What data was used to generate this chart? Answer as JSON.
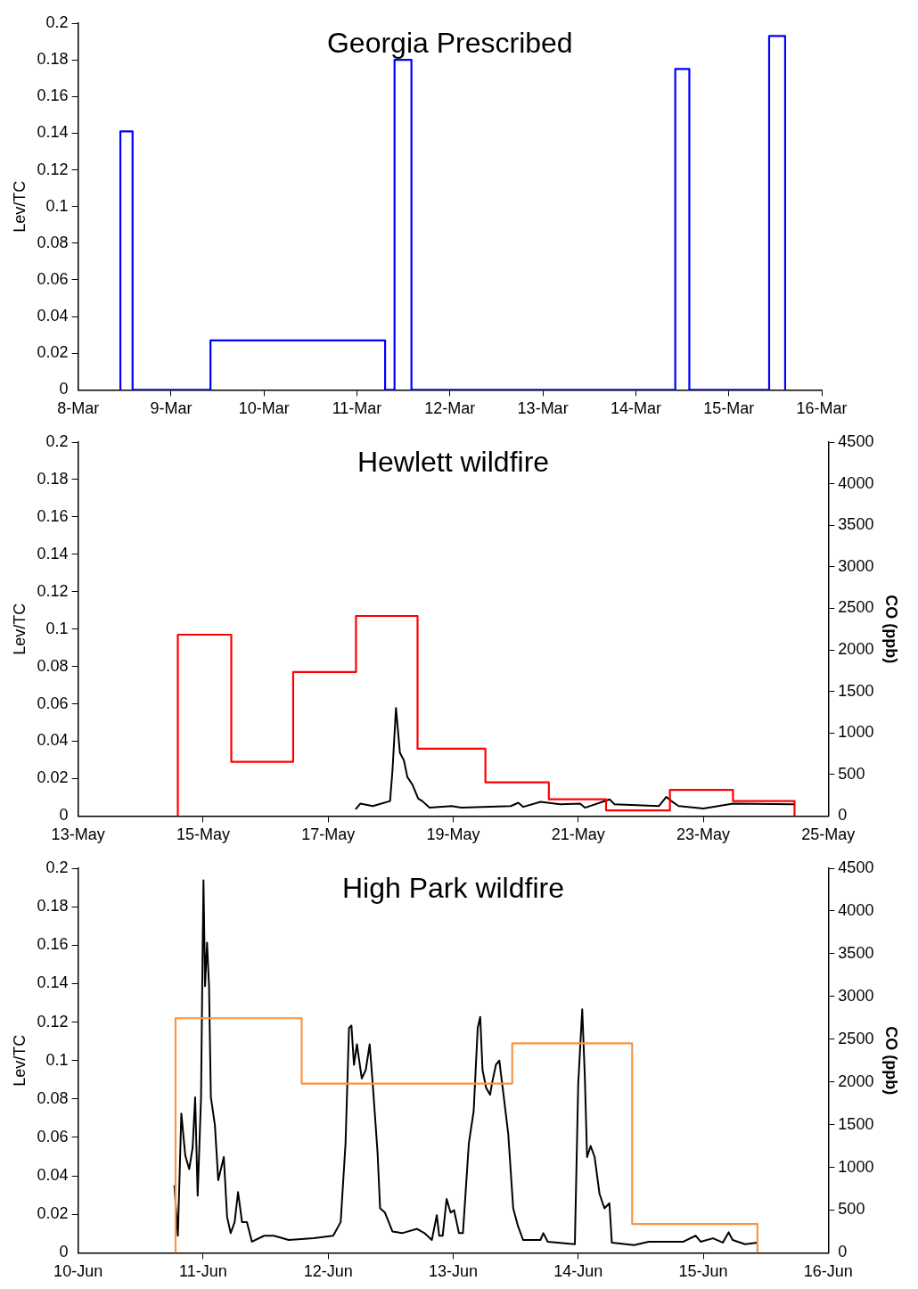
{
  "chart_data": [
    {
      "type": "step",
      "title": "Georgia Prescribed",
      "ylabel": "Lev/TC",
      "xlim": [
        "--03-08",
        "--03-16"
      ],
      "xticks": [
        {
          "value": "--03-08",
          "label": "8-Mar"
        },
        {
          "value": "--03-09",
          "label": "9-Mar"
        },
        {
          "value": "--03-10",
          "label": "10-Mar"
        },
        {
          "value": "--03-11",
          "label": "11-Mar"
        },
        {
          "value": "--03-12",
          "label": "12-Mar"
        },
        {
          "value": "--03-13",
          "label": "13-Mar"
        },
        {
          "value": "--03-14",
          "label": "14-Mar"
        },
        {
          "value": "--03-15",
          "label": "15-Mar"
        },
        {
          "value": "--03-16",
          "label": "16-Mar"
        }
      ],
      "ylim": [
        0,
        0.2
      ],
      "yticks": [
        0,
        0.02,
        0.04,
        0.06,
        0.08,
        0.1,
        0.12,
        0.14,
        0.16,
        0.18,
        0.2
      ],
      "marker": "none",
      "series": [
        {
          "color": "#0000ff",
          "x": [
            "--03-08T10:55",
            "--03-08T10:55",
            "--03-08T14:04",
            "--03-09T10:11",
            "--03-11T07:16",
            "--03-11T09:42",
            "--03-11T14:04",
            "--03-14T10:11",
            "--03-14T13:49",
            "--03-15T10:25",
            "--03-15T14:33"
          ],
          "values": [
            0,
            0.141,
            0,
            0.027,
            0,
            0.18,
            0,
            0.175,
            0,
            0.193,
            0
          ]
        }
      ]
    },
    {
      "type": "step",
      "title": "Hewlett wildfire",
      "ylabel": "Lev/TC",
      "y2label": "CO (ppb)",
      "xlim": [
        "--05-13",
        "--05-25"
      ],
      "xticks": [
        {
          "value": "--05-13",
          "label": "13-May"
        },
        {
          "value": "--05-15",
          "label": "15-May"
        },
        {
          "value": "--05-17",
          "label": "17-May"
        },
        {
          "value": "--05-19",
          "label": "19-May"
        },
        {
          "value": "--05-21",
          "label": "21-May"
        },
        {
          "value": "--05-23",
          "label": "23-May"
        },
        {
          "value": "--05-25",
          "label": "25-May"
        }
      ],
      "ylim": [
        0,
        0.2
      ],
      "yticks": [
        0,
        0.02,
        0.04,
        0.06,
        0.08,
        0.1,
        0.12,
        0.14,
        0.16,
        0.18,
        0.2
      ],
      "y2lim": [
        0,
        4500
      ],
      "y2ticks": [
        0,
        500,
        1000,
        1500,
        2000,
        2500,
        3000,
        3500,
        4000,
        4500
      ],
      "marker": "none",
      "series": [
        {
          "color": "#ff0000",
          "x": [
            "--05-14T14:17",
            "--05-14T14:17",
            "--05-15T10:48",
            "--05-16T10:34",
            "--05-17T10:41",
            "--05-18T10:19",
            "--05-19T12:22",
            "--05-20T12:43",
            "--05-21T10:41",
            "--05-22T11:11",
            "--05-23T11:24",
            "--05-24T11:02"
          ],
          "values": [
            0,
            0.097,
            0.029,
            0.077,
            0.107,
            0.036,
            0.018,
            0.009,
            0.003,
            0.014,
            0.008,
            0
          ]
        },
        {
          "type": "line",
          "axis": "y2",
          "color": "#000000",
          "x": [
            "--05-17T10:31",
            "--05-17T12:24",
            "--05-17T17:08",
            "--05-17T23:46",
            "--05-18T00:43",
            "--05-18T02:02",
            "--05-18T03:33",
            "--05-18T05:05",
            "--05-18T06:24",
            "--05-18T08:18",
            "--05-18T10:34",
            "--05-18T12:06",
            "--05-18T14:56",
            "--05-18T23:27",
            "--05-19T03:13",
            "--05-19T22:09",
            "--05-20T01:00",
            "--05-20T02:54",
            "--05-20T09:32",
            "--05-20T17:07",
            "--05-21T00:42",
            "--05-21T02:36",
            "--05-21T12:03",
            "--05-21T13:57",
            "--05-22T07:00",
            "--05-22T09:50",
            "--05-22T11:44",
            "--05-22T14:34",
            "--05-23T00:03",
            "--05-23T11:25",
            "--05-24T11:07"
          ],
          "values": [
            80,
            150,
            120,
            180,
            560,
            1300,
            760,
            670,
            470,
            380,
            210,
            180,
            100,
            120,
            100,
            120,
            160,
            110,
            170,
            140,
            150,
            100,
            200,
            140,
            120,
            230,
            180,
            120,
            90,
            150,
            140
          ]
        }
      ]
    },
    {
      "type": "step",
      "title": "High Park wildfire",
      "ylabel": "Lev/TC",
      "y2label": "CO (ppb)",
      "xlim": [
        "--06-10",
        "--06-16"
      ],
      "xticks": [
        {
          "value": "--06-10",
          "label": "10-Jun"
        },
        {
          "value": "--06-11",
          "label": "11-Jun"
        },
        {
          "value": "--06-12",
          "label": "12-Jun"
        },
        {
          "value": "--06-13",
          "label": "13-Jun"
        },
        {
          "value": "--06-14",
          "label": "14-Jun"
        },
        {
          "value": "--06-15",
          "label": "15-Jun"
        },
        {
          "value": "--06-16",
          "label": "16-Jun"
        }
      ],
      "ylim": [
        0,
        0.2
      ],
      "yticks": [
        0,
        0.02,
        0.04,
        0.06,
        0.08,
        0.1,
        0.12,
        0.14,
        0.16,
        0.18,
        0.2
      ],
      "y2lim": [
        0,
        4500
      ],
      "y2ticks": [
        0,
        500,
        1000,
        1500,
        2000,
        2500,
        3000,
        3500,
        4000,
        4500
      ],
      "marker": "none",
      "series": [
        {
          "color": "#f79646",
          "x": [
            "--06-10T18:42",
            "--06-10T18:42",
            "--06-11T18:55",
            "--06-13T11:20",
            "--06-14T10:21",
            "--06-15T10:24"
          ],
          "values": [
            0,
            0.122,
            0.088,
            0.109,
            0.015,
            0
          ]
        },
        {
          "type": "line",
          "axis": "y2",
          "color": "#000000",
          "x": [
            "--06-10T18:29",
            "--06-10T19:09",
            "--06-10T19:49",
            "--06-10T20:34",
            "--06-10T21:20",
            "--06-10T21:59",
            "--06-10T22:28",
            "--06-10T22:57",
            "--06-10T23:36",
            "--06-10T23:53",
            "--06-11T00:04",
            "--06-11T00:22",
            "--06-11T00:45",
            "--06-11T01:08",
            "--06-11T01:29",
            "--06-11T02:15",
            "--06-11T02:54",
            "--06-11T03:58",
            "--06-11T04:36",
            "--06-11T05:17",
            "--06-11T06:03",
            "--06-11T06:42",
            "--06-11T07:28",
            "--06-11T08:24",
            "--06-11T09:22",
            "--06-11T11:43",
            "--06-11T13:36",
            "--06-11T16:26",
            "--06-11T21:12",
            "--06-12T00:58",
            "--06-12T02:24",
            "--06-12T03:20",
            "--06-12T04:00",
            "--06-12T04:28",
            "--06-12T04:57",
            "--06-12T05:31",
            "--06-12T06:27",
            "--06-12T07:13",
            "--06-12T07:58",
            "--06-12T08:33",
            "--06-12T09:29",
            "--06-12T09:58",
            "--06-12T10:54",
            "--06-12T12:20",
            "--06-12T14:12",
            "--06-12T17:04",
            "--06-12T18:29",
            "--06-12T19:54",
            "--06-12T20:51",
            "--06-12T21:19",
            "--06-12T21:59",
            "--06-12T22:44",
            "--06-12T23:30",
            "--06-13T00:10",
            "--06-13T01:06",
            "--06-13T01:52",
            "--06-13T03:00",
            "--06-13T03:56",
            "--06-13T04:42",
            "--06-13T05:11",
            "--06-13T05:38",
            "--06-13T06:19",
            "--06-13T07:05",
            "--06-13T07:26",
            "--06-13T08:12",
            "--06-13T08:51",
            "--06-13T09:37",
            "--06-13T10:34",
            "--06-13T11:31",
            "--06-13T12:27",
            "--06-13T13:25",
            "--06-13T16:44",
            "--06-13T17:18",
            "--06-13T18:09",
            "--06-13T23:21",
            "--06-14T00:00",
            "--06-14T00:46",
            "--06-14T01:15",
            "--06-14T01:42",
            "--06-14T02:23",
            "--06-14T03:09",
            "--06-14T04:05",
            "--06-14T05:02",
            "--06-14T05:59",
            "--06-14T06:27",
            "--06-14T10:42",
            "--06-14T13:32",
            "--06-14T20:11",
            "--06-14T22:32",
            "--06-14T23:30",
            "--06-15T01:51",
            "--06-15T03:45",
            "--06-15T04:52",
            "--06-15T05:38",
            "--06-15T08:01",
            "--06-15T10:22"
          ],
          "values": [
            790,
            200,
            1630,
            1140,
            980,
            1230,
            1820,
            670,
            1820,
            3440,
            4360,
            3120,
            3630,
            3120,
            1820,
            1500,
            850,
            1120,
            420,
            230,
            360,
            710,
            360,
            360,
            130,
            200,
            200,
            150,
            170,
            200,
            360,
            1280,
            2630,
            2660,
            2200,
            2440,
            2040,
            2140,
            2440,
            1980,
            1170,
            520,
            470,
            250,
            230,
            280,
            230,
            150,
            440,
            200,
            200,
            630,
            470,
            500,
            230,
            230,
            1280,
            1660,
            2630,
            2760,
            2140,
            1930,
            1850,
            1980,
            2200,
            2250,
            1870,
            1390,
            520,
            310,
            150,
            150,
            230,
            130,
            100,
            1980,
            2850,
            2090,
            1120,
            1250,
            1120,
            690,
            520,
            580,
            120,
            90,
            130,
            130,
            200,
            130,
            170,
            120,
            240,
            150,
            100,
            120
          ]
        }
      ]
    }
  ]
}
